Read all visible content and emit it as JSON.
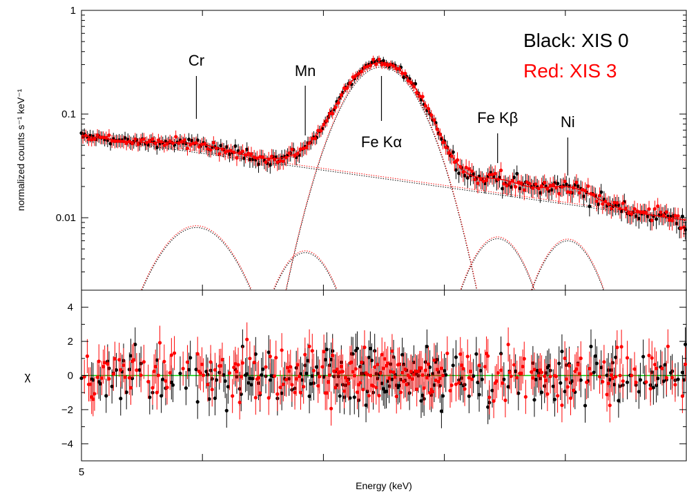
{
  "chart_data": [
    {
      "type": "scatter",
      "panel": "spectrum",
      "ylabel": "normalized counts s⁻¹ keV⁻¹",
      "yscale": "log",
      "ylim": [
        0.002,
        1
      ],
      "xlim": [
        5.0,
        10.0
      ],
      "ytick_labels": [
        "1",
        "0.1",
        "0.01"
      ],
      "ytick_values": [
        1,
        0.1,
        0.01
      ],
      "legend": [
        {
          "label": "Black: XIS 0",
          "color": "#000000"
        },
        {
          "label": "Red: XIS 3",
          "color": "#ff0000"
        }
      ],
      "line_labels": [
        {
          "text": "Cr",
          "energy": 5.95
        },
        {
          "text": "Mn",
          "energy": 6.85
        },
        {
          "text": "Fe Kα",
          "energy": 7.48
        },
        {
          "text": "Fe Kβ",
          "energy": 8.44
        },
        {
          "text": "Ni",
          "energy": 9.02
        }
      ],
      "series": [
        {
          "name": "Black: XIS 0",
          "color": "#000000"
        },
        {
          "name": "Red: XIS 3",
          "color": "#ff0000"
        }
      ],
      "continuum": {
        "energy": [
          5.0,
          10.0
        ],
        "value": [
          0.062,
          0.0095
        ]
      },
      "gaussian_components": [
        {
          "center": 5.95,
          "peak": 0.0082,
          "sigma": 0.27
        },
        {
          "center": 6.85,
          "peak": 0.0047,
          "sigma": 0.2
        },
        {
          "center": 7.48,
          "peak": 0.29,
          "sigma": 0.25
        },
        {
          "center": 8.44,
          "peak": 0.0064,
          "sigma": 0.2
        },
        {
          "center": 9.02,
          "peak": 0.0061,
          "sigma": 0.2
        }
      ]
    },
    {
      "type": "scatter",
      "panel": "residuals",
      "ylabel": "χ",
      "xlabel": "Energy (keV)",
      "ylim": [
        -5,
        5
      ],
      "ytick_values": [
        4,
        2,
        0,
        -2,
        -4
      ],
      "ytick_labels": [
        "4",
        "2",
        "0",
        "−2",
        "−4"
      ],
      "xtick_labels": [
        "5"
      ],
      "reference_line": {
        "y": 0,
        "color": "#00cc00"
      },
      "series": [
        {
          "name": "Black: XIS 0",
          "color": "#000000",
          "value_range": [
            -3.5,
            3.5
          ]
        },
        {
          "name": "Red: XIS 3",
          "color": "#ff0000",
          "value_range": [
            -3.5,
            3.5
          ]
        }
      ]
    }
  ]
}
